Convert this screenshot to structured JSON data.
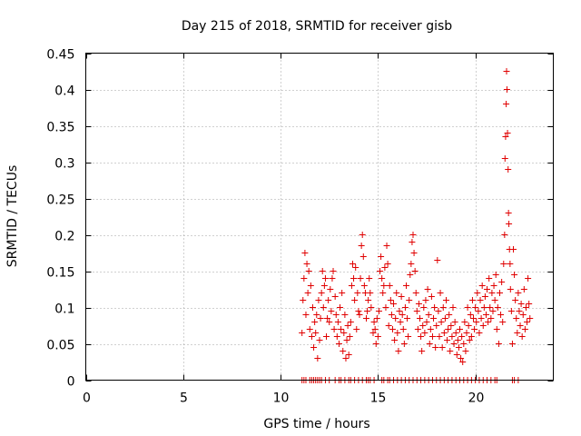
{
  "chart_data": {
    "type": "scatter",
    "title": "Day 215 of 2018, SRMTID for receiver gisb",
    "xlabel": "GPS time / hours",
    "ylabel": "SRMTID / TECUs",
    "xlim": [
      0,
      24
    ],
    "ylim": [
      0,
      0.45
    ],
    "x_ticks": [
      "0",
      "5",
      "10",
      "15",
      "20"
    ],
    "x_tick_values": [
      0,
      5,
      10,
      15,
      20
    ],
    "y_ticks": [
      "0",
      "0.05",
      "0.1",
      "0.15",
      "0.2",
      "0.25",
      "0.3",
      "0.35",
      "0.4",
      "0.45"
    ],
    "y_tick_values": [
      0,
      0.05,
      0.1,
      0.15,
      0.2,
      0.25,
      0.3,
      0.35,
      0.4,
      0.45
    ],
    "grid": true,
    "marker": "+",
    "series": [
      {
        "name": "SRMTID",
        "color": "#e00000",
        "points": [
          [
            11.1,
            0.065
          ],
          [
            11.15,
            0.11
          ],
          [
            11.2,
            0.14
          ],
          [
            11.25,
            0.175
          ],
          [
            11.3,
            0.09
          ],
          [
            11.35,
            0.16
          ],
          [
            11.4,
            0.12
          ],
          [
            11.45,
            0.15
          ],
          [
            11.5,
            0.07
          ],
          [
            11.55,
            0.13
          ],
          [
            11.6,
            0.06
          ],
          [
            11.65,
            0.1
          ],
          [
            11.7,
            0.045
          ],
          [
            11.75,
            0.08
          ],
          [
            11.8,
            0.065
          ],
          [
            11.85,
            0.09
          ],
          [
            11.9,
            0.03
          ],
          [
            11.95,
            0.11
          ],
          [
            12.0,
            0.055
          ],
          [
            12.05,
            0.085
          ],
          [
            12.1,
            0.12
          ],
          [
            12.15,
            0.15
          ],
          [
            12.2,
            0.1
          ],
          [
            12.25,
            0.13
          ],
          [
            12.3,
            0.14
          ],
          [
            12.35,
            0.06
          ],
          [
            12.4,
            0.085
          ],
          [
            12.45,
            0.11
          ],
          [
            12.5,
            0.08
          ],
          [
            12.55,
            0.125
          ],
          [
            12.6,
            0.095
          ],
          [
            12.65,
            0.14
          ],
          [
            12.7,
            0.15
          ],
          [
            12.75,
            0.07
          ],
          [
            12.8,
            0.115
          ],
          [
            12.85,
            0.09
          ],
          [
            12.9,
            0.06
          ],
          [
            12.95,
            0.08
          ],
          [
            13.0,
            0.05
          ],
          [
            13.05,
            0.1
          ],
          [
            13.1,
            0.07
          ],
          [
            13.15,
            0.12
          ],
          [
            13.2,
            0.04
          ],
          [
            13.25,
            0.065
          ],
          [
            13.3,
            0.09
          ],
          [
            13.35,
            0.03
          ],
          [
            13.4,
            0.055
          ],
          [
            13.45,
            0.075
          ],
          [
            13.5,
            0.035
          ],
          [
            13.55,
            0.06
          ],
          [
            13.6,
            0.08
          ],
          [
            13.65,
            0.13
          ],
          [
            13.7,
            0.16
          ],
          [
            13.75,
            0.14
          ],
          [
            13.8,
            0.11
          ],
          [
            13.85,
            0.155
          ],
          [
            13.9,
            0.07
          ],
          [
            13.95,
            0.12
          ],
          [
            14.0,
            0.095
          ],
          [
            14.05,
            0.09
          ],
          [
            14.1,
            0.14
          ],
          [
            14.15,
            0.185
          ],
          [
            14.2,
            0.2
          ],
          [
            14.25,
            0.17
          ],
          [
            14.3,
            0.13
          ],
          [
            14.35,
            0.12
          ],
          [
            14.4,
            0.085
          ],
          [
            14.45,
            0.095
          ],
          [
            14.5,
            0.11
          ],
          [
            14.55,
            0.14
          ],
          [
            14.6,
            0.12
          ],
          [
            14.65,
            0.1
          ],
          [
            14.75,
            0.065
          ],
          [
            14.8,
            0.08
          ],
          [
            14.85,
            0.07
          ],
          [
            14.9,
            0.05
          ],
          [
            14.95,
            0.085
          ],
          [
            15.0,
            0.06
          ],
          [
            15.05,
            0.095
          ],
          [
            15.1,
            0.15
          ],
          [
            15.15,
            0.17
          ],
          [
            15.2,
            0.14
          ],
          [
            15.25,
            0.12
          ],
          [
            15.3,
            0.13
          ],
          [
            15.35,
            0.155
          ],
          [
            15.4,
            0.1
          ],
          [
            15.45,
            0.185
          ],
          [
            15.5,
            0.16
          ],
          [
            15.55,
            0.075
          ],
          [
            15.6,
            0.13
          ],
          [
            15.65,
            0.11
          ],
          [
            15.7,
            0.09
          ],
          [
            15.75,
            0.07
          ],
          [
            15.8,
            0.105
          ],
          [
            15.85,
            0.055
          ],
          [
            15.9,
            0.085
          ],
          [
            15.95,
            0.12
          ],
          [
            16.0,
            0.065
          ],
          [
            16.05,
            0.04
          ],
          [
            16.1,
            0.095
          ],
          [
            16.15,
            0.08
          ],
          [
            16.2,
            0.115
          ],
          [
            16.25,
            0.09
          ],
          [
            16.3,
            0.07
          ],
          [
            16.35,
            0.05
          ],
          [
            16.4,
            0.1
          ],
          [
            16.45,
            0.13
          ],
          [
            16.5,
            0.085
          ],
          [
            16.55,
            0.06
          ],
          [
            16.6,
            0.11
          ],
          [
            16.65,
            0.145
          ],
          [
            16.7,
            0.16
          ],
          [
            16.75,
            0.19
          ],
          [
            16.8,
            0.2
          ],
          [
            16.85,
            0.175
          ],
          [
            16.9,
            0.15
          ],
          [
            16.95,
            0.12
          ],
          [
            17.0,
            0.095
          ],
          [
            17.05,
            0.07
          ],
          [
            17.1,
            0.105
          ],
          [
            17.15,
            0.085
          ],
          [
            17.2,
            0.06
          ],
          [
            17.25,
            0.04
          ],
          [
            17.3,
            0.075
          ],
          [
            17.35,
            0.1
          ],
          [
            17.4,
            0.065
          ],
          [
            17.45,
            0.11
          ],
          [
            17.5,
            0.08
          ],
          [
            17.55,
            0.125
          ],
          [
            17.6,
            0.09
          ],
          [
            17.65,
            0.05
          ],
          [
            17.7,
            0.07
          ],
          [
            17.75,
            0.115
          ],
          [
            17.8,
            0.06
          ],
          [
            17.85,
            0.085
          ],
          [
            17.9,
            0.1
          ],
          [
            17.95,
            0.045
          ],
          [
            18.0,
            0.075
          ],
          [
            18.05,
            0.165
          ],
          [
            18.1,
            0.095
          ],
          [
            18.15,
            0.06
          ],
          [
            18.2,
            0.12
          ],
          [
            18.25,
            0.08
          ],
          [
            18.3,
            0.045
          ],
          [
            18.35,
            0.1
          ],
          [
            18.4,
            0.065
          ],
          [
            18.45,
            0.085
          ],
          [
            18.5,
            0.11
          ],
          [
            18.55,
            0.055
          ],
          [
            18.6,
            0.07
          ],
          [
            18.65,
            0.09
          ],
          [
            18.7,
            0.04
          ],
          [
            18.75,
            0.075
          ],
          [
            18.8,
            0.06
          ],
          [
            18.85,
            0.1
          ],
          [
            18.9,
            0.05
          ],
          [
            18.95,
            0.08
          ],
          [
            19.0,
            0.065
          ],
          [
            19.05,
            0.035
          ],
          [
            19.1,
            0.055
          ],
          [
            19.15,
            0.045
          ],
          [
            19.2,
            0.07
          ],
          [
            19.25,
            0.03
          ],
          [
            19.3,
            0.06
          ],
          [
            19.35,
            0.025
          ],
          [
            19.4,
            0.05
          ],
          [
            19.45,
            0.08
          ],
          [
            19.5,
            0.04
          ],
          [
            19.55,
            0.065
          ],
          [
            19.6,
            0.1
          ],
          [
            19.65,
            0.075
          ],
          [
            19.7,
            0.055
          ],
          [
            19.75,
            0.09
          ],
          [
            19.8,
            0.06
          ],
          [
            19.85,
            0.11
          ],
          [
            19.9,
            0.085
          ],
          [
            19.95,
            0.07
          ],
          [
            20.0,
            0.1
          ],
          [
            20.05,
            0.08
          ],
          [
            20.1,
            0.12
          ],
          [
            20.15,
            0.095
          ],
          [
            20.2,
            0.065
          ],
          [
            20.25,
            0.11
          ],
          [
            20.3,
            0.085
          ],
          [
            20.35,
            0.13
          ],
          [
            20.4,
            0.075
          ],
          [
            20.45,
            0.1
          ],
          [
            20.5,
            0.115
          ],
          [
            20.55,
            0.09
          ],
          [
            20.6,
            0.125
          ],
          [
            20.65,
            0.08
          ],
          [
            20.7,
            0.14
          ],
          [
            20.75,
            0.1
          ],
          [
            20.8,
            0.085
          ],
          [
            20.85,
            0.12
          ],
          [
            20.9,
            0.095
          ],
          [
            20.95,
            0.13
          ],
          [
            21.0,
            0.11
          ],
          [
            21.05,
            0.145
          ],
          [
            21.1,
            0.07
          ],
          [
            21.15,
            0.1
          ],
          [
            21.2,
            0.05
          ],
          [
            21.25,
            0.12
          ],
          [
            21.3,
            0.09
          ],
          [
            21.35,
            0.135
          ],
          [
            21.4,
            0.08
          ],
          [
            21.45,
            0.16
          ],
          [
            21.5,
            0.2
          ],
          [
            21.52,
            0.305
          ],
          [
            21.55,
            0.335
          ],
          [
            21.58,
            0.38
          ],
          [
            21.6,
            0.425
          ],
          [
            21.62,
            0.4
          ],
          [
            21.65,
            0.34
          ],
          [
            21.68,
            0.29
          ],
          [
            21.7,
            0.23
          ],
          [
            21.72,
            0.215
          ],
          [
            21.75,
            0.18
          ],
          [
            21.78,
            0.16
          ],
          [
            21.8,
            0.125
          ],
          [
            21.85,
            0.095
          ],
          [
            21.9,
            0.05
          ],
          [
            21.95,
            0.18
          ],
          [
            22.0,
            0.145
          ],
          [
            22.05,
            0.11
          ],
          [
            22.1,
            0.085
          ],
          [
            22.15,
            0.065
          ],
          [
            22.2,
            0.12
          ],
          [
            22.25,
            0.095
          ],
          [
            22.3,
            0.075
          ],
          [
            22.35,
            0.105
          ],
          [
            22.4,
            0.06
          ],
          [
            22.45,
            0.09
          ],
          [
            22.5,
            0.125
          ],
          [
            22.55,
            0.07
          ],
          [
            22.6,
            0.1
          ],
          [
            22.65,
            0.08
          ],
          [
            22.7,
            0.14
          ],
          [
            22.75,
            0.105
          ],
          [
            22.8,
            0.085
          ]
        ],
        "zero_points_x": [
          11.1,
          11.2,
          11.3,
          11.5,
          11.6,
          11.7,
          11.8,
          11.9,
          12.0,
          12.1,
          12.3,
          12.5,
          12.8,
          13.0,
          13.1,
          13.3,
          13.5,
          13.6,
          13.8,
          14.0,
          14.2,
          14.4,
          14.5,
          14.6,
          14.8,
          15.2,
          15.3,
          15.5,
          15.6,
          15.8,
          16.0,
          16.2,
          16.4,
          16.6,
          16.8,
          17.0,
          17.2,
          17.4,
          17.6,
          17.8,
          18.0,
          18.2,
          18.4,
          18.6,
          18.8,
          19.0,
          19.2,
          19.4,
          19.6,
          19.8,
          20.0,
          20.2,
          20.4,
          20.6,
          20.8,
          21.0,
          21.1,
          21.9,
          22.0,
          22.2
        ]
      }
    ]
  }
}
